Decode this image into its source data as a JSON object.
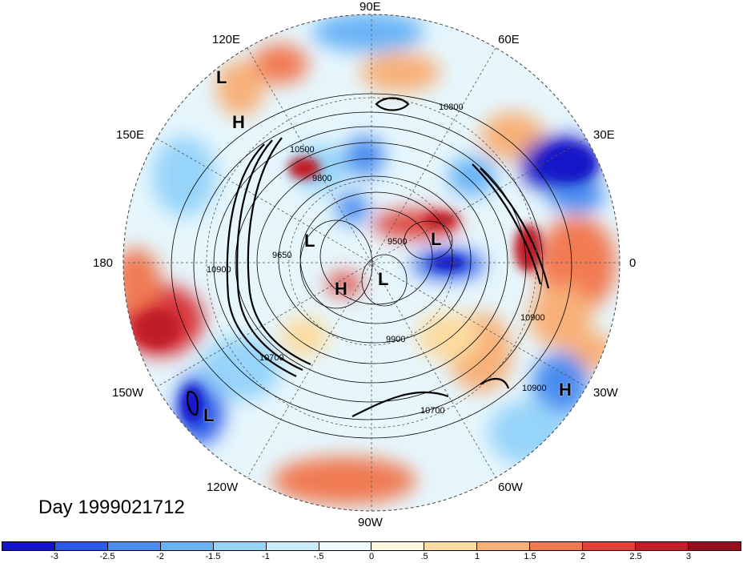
{
  "map": {
    "day_label": "Day 1999021712",
    "longitude_labels": [
      "90E",
      "60E",
      "30E",
      "0",
      "30W",
      "60W",
      "90W",
      "120W",
      "150W",
      "180",
      "150E",
      "120E"
    ],
    "pressure_centers": [
      {
        "label": "L",
        "lon": "120E sector"
      },
      {
        "label": "H",
        "lon": "150E sector"
      },
      {
        "label": "L",
        "lon": "polar"
      },
      {
        "label": "L",
        "lon": "polar"
      },
      {
        "label": "H",
        "lon": "polar"
      },
      {
        "label": "L",
        "lon": "polar"
      },
      {
        "label": "L",
        "lon": "150W sector"
      },
      {
        "label": "H",
        "lon": "30W sector"
      }
    ],
    "contour_labels": [
      "10800",
      "10500",
      "9800",
      "9500",
      "9650",
      "10900",
      "10700",
      "9900",
      "10900",
      "10900",
      "10700"
    ]
  },
  "colorbar": {
    "tick_labels": [
      "-3",
      "-2.5",
      "-2",
      "-1.5",
      "-1",
      "-.5",
      "0",
      ".5",
      "1",
      "1.5",
      "2",
      "2.5",
      "3"
    ],
    "colors": [
      "#1414c8",
      "#2c5ae6",
      "#4a8cf0",
      "#6ab4f6",
      "#96d4fa",
      "#c8ecfc",
      "#eefaff",
      "#fff6dc",
      "#fcdca0",
      "#f8b078",
      "#f27a52",
      "#e0423a",
      "#c01e28",
      "#960e1e"
    ]
  }
}
